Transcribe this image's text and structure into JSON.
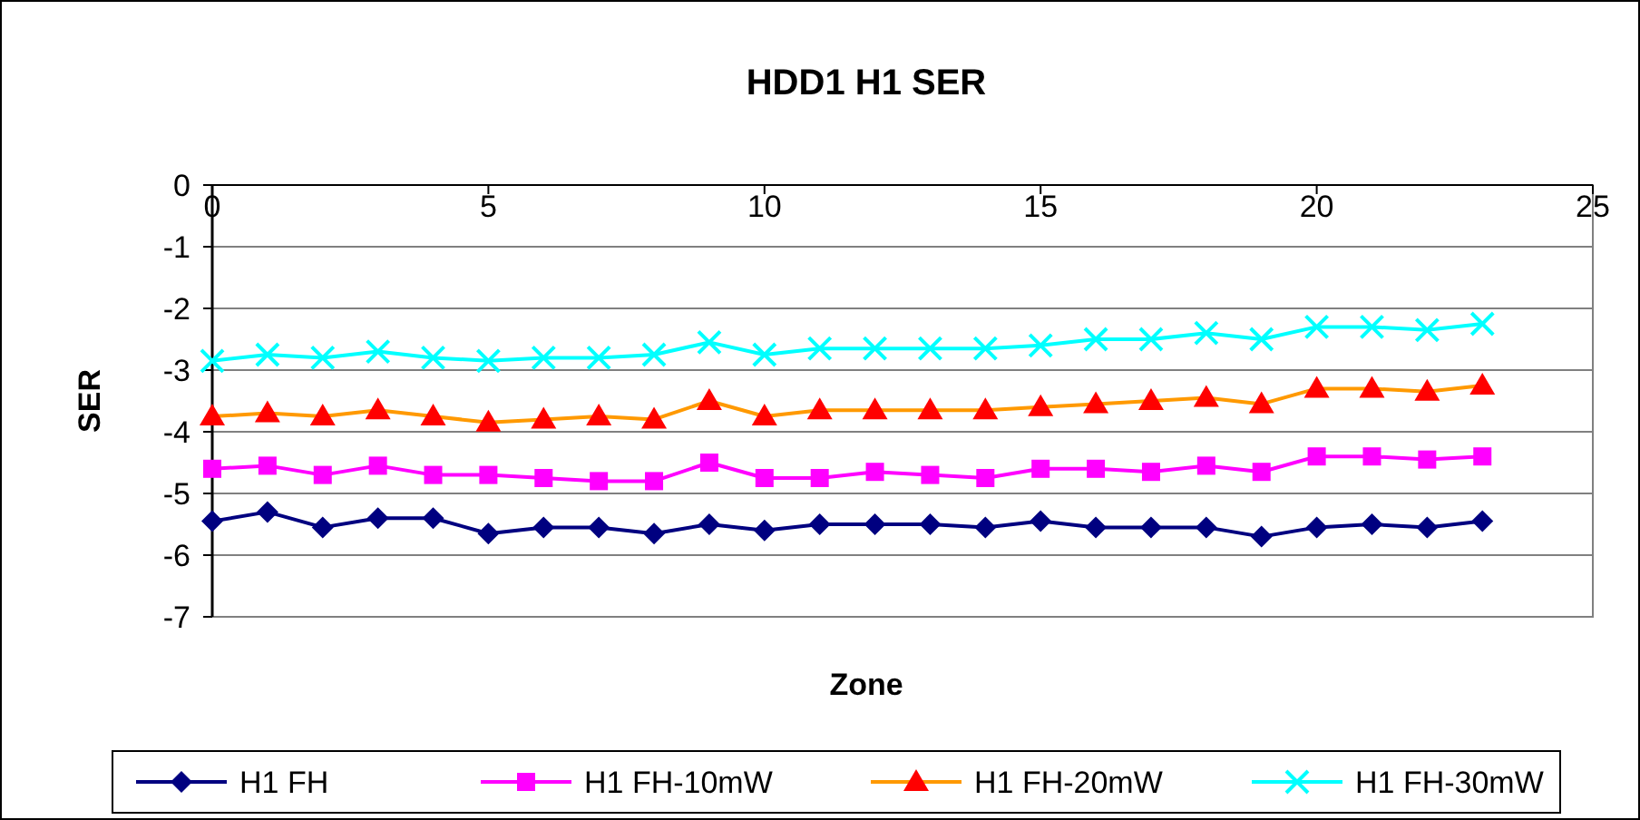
{
  "chart_data": {
    "type": "line",
    "title": "HDD1 H1 SER",
    "xlabel": "Zone",
    "ylabel": "SER",
    "x": [
      0,
      1,
      2,
      3,
      4,
      5,
      6,
      7,
      8,
      9,
      10,
      11,
      12,
      13,
      14,
      15,
      16,
      17,
      18,
      19,
      20,
      21,
      22,
      23
    ],
    "xlim": [
      0,
      25
    ],
    "xticks": [
      0,
      5,
      10,
      15,
      20,
      25
    ],
    "ylim": [
      -7,
      0
    ],
    "yticks": [
      -7,
      -6,
      -5,
      -4,
      -3,
      -2,
      -1,
      0
    ],
    "grid": "y",
    "legend": "bottom",
    "series": [
      {
        "name": "H1 FH",
        "color": "#000080",
        "marker": "diamond",
        "values": [
          -5.45,
          -5.3,
          -5.55,
          -5.4,
          -5.4,
          -5.65,
          -5.55,
          -5.55,
          -5.65,
          -5.5,
          -5.6,
          -5.5,
          -5.5,
          -5.5,
          -5.55,
          -5.45,
          -5.55,
          -5.55,
          -5.55,
          -5.7,
          -5.55,
          -5.5,
          -5.55,
          -5.45
        ]
      },
      {
        "name": "H1 FH-10mW",
        "color": "#ff00ff",
        "marker": "square",
        "values": [
          -4.6,
          -4.55,
          -4.7,
          -4.55,
          -4.7,
          -4.7,
          -4.75,
          -4.8,
          -4.8,
          -4.5,
          -4.75,
          -4.75,
          -4.65,
          -4.7,
          -4.75,
          -4.6,
          -4.6,
          -4.65,
          -4.55,
          -4.65,
          -4.4,
          -4.4,
          -4.45,
          -4.4
        ]
      },
      {
        "name": "H1 FH-20mW",
        "color": "#ff9900",
        "marker": "triangle",
        "values": [
          -3.75,
          -3.7,
          -3.75,
          -3.65,
          -3.75,
          -3.85,
          -3.8,
          -3.75,
          -3.8,
          -3.5,
          -3.75,
          -3.65,
          -3.65,
          -3.65,
          -3.65,
          -3.6,
          -3.55,
          -3.5,
          -3.45,
          -3.55,
          -3.3,
          -3.3,
          -3.35,
          -3.25
        ]
      },
      {
        "name": "H1 FH-30mW",
        "color": "#00ffff",
        "marker": "cross",
        "values": [
          -2.85,
          -2.75,
          -2.8,
          -2.7,
          -2.8,
          -2.85,
          -2.8,
          -2.8,
          -2.75,
          -2.55,
          -2.75,
          -2.65,
          -2.65,
          -2.65,
          -2.65,
          -2.6,
          -2.5,
          -2.5,
          -2.4,
          -2.5,
          -2.3,
          -2.3,
          -2.35,
          -2.25
        ]
      }
    ]
  }
}
